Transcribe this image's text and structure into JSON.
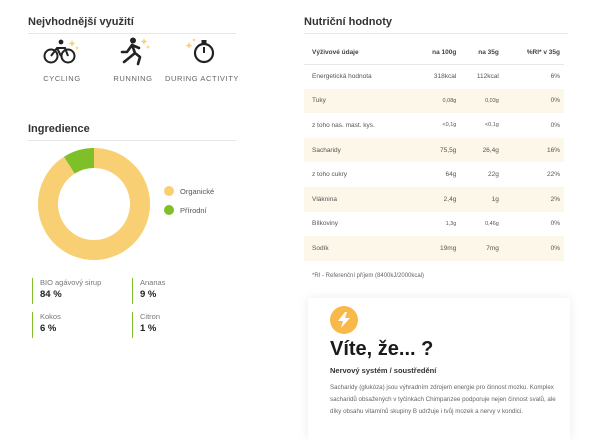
{
  "usage": {
    "title": "Nejvhodnější využití",
    "items": [
      {
        "label": "CYCLING",
        "icon": "cyclist-icon"
      },
      {
        "label": "RUNNING",
        "icon": "runner-icon"
      },
      {
        "label": "DURING ACTIVITY",
        "icon": "stopwatch-icon"
      }
    ]
  },
  "ingredients": {
    "title": "Ingredience",
    "legend": [
      {
        "label": "Organické",
        "color": "#f9cf73"
      },
      {
        "label": "Přírodní",
        "color": "#7fc028"
      }
    ],
    "donut_fractions": {
      "organic": 0.91,
      "natural": 0.09
    },
    "items": [
      {
        "name": "BIO agávový sirup",
        "value": "84 %"
      },
      {
        "name": "Ananas",
        "value": "9 %"
      },
      {
        "name": "Kokos",
        "value": "6 %"
      },
      {
        "name": "Citron",
        "value": "1 %"
      }
    ]
  },
  "nutrition": {
    "title": "Nutriční hodnoty",
    "headers": [
      "Výživové údaje",
      "na 100g",
      "na 35g",
      "%RI* v 35g"
    ],
    "rows": [
      [
        "Energetická hodnota",
        "318kcal",
        "112kcal",
        "6%"
      ],
      [
        "Tuky",
        "0,08g",
        "0,03g",
        "0%"
      ],
      [
        "z toho nas. mast. kys.",
        "<0,1g",
        "<0,1g",
        "0%"
      ],
      [
        "Sacharidy",
        "75,5g",
        "26,4g",
        "16%"
      ],
      [
        "z toho cukry",
        "64g",
        "22g",
        "22%"
      ],
      [
        "Vláknina",
        "2,4g",
        "1g",
        "2%"
      ],
      [
        "Bílkoviny",
        "1,3g",
        "0,46g",
        "0%"
      ],
      [
        "Sodík",
        "19mg",
        "7mg",
        "0%"
      ]
    ],
    "footnote": "*RI - Referenční příjem (8400kJ/2000kcal)"
  },
  "did_you_know": {
    "icon": "lightning-icon",
    "title": "Víte, že... ?",
    "subtitle": "Nervový systém / soustředění",
    "body": "Sacharidy (glukóza) jsou výhradním zdrojem energie pro činnost mozku. Komplex sacharidů obsažených v tyčinkách Chimpanzee podporuje nejen činnost svalů, ale díky obsahu vitamínů skupiny B udržuje i tvůj mozek a nervy v kondici."
  }
}
